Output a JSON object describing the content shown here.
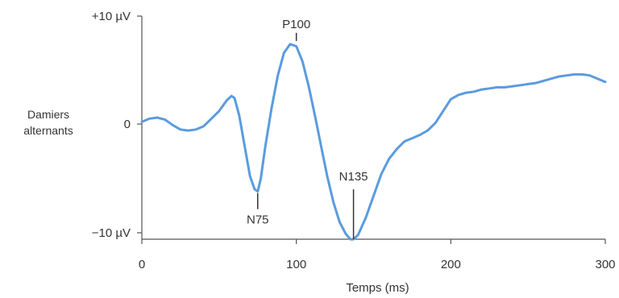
{
  "chart_data": {
    "type": "line",
    "xlabel": "Temps (ms)",
    "xlim": [
      0,
      300
    ],
    "ylim": [
      -10,
      10
    ],
    "x_ticks": [
      0,
      100,
      200,
      300
    ],
    "x_tick_labels": [
      "0",
      "100",
      "200",
      "300"
    ],
    "y_ticks": [
      10,
      0,
      -10
    ],
    "y_tick_labels": [
      "+10 µV",
      "0",
      "−10 µV"
    ],
    "row_label_lines": [
      "Damiers",
      "alternants"
    ],
    "series": [
      {
        "color": "#5b9bdf",
        "x": [
          0,
          5,
          10,
          15,
          20,
          25,
          30,
          35,
          40,
          45,
          50,
          55,
          58,
          60,
          63,
          66,
          70,
          73,
          75,
          77,
          80,
          84,
          88,
          92,
          96,
          100,
          104,
          108,
          112,
          116,
          120,
          124,
          128,
          132,
          135,
          137,
          140,
          145,
          150,
          155,
          160,
          165,
          170,
          175,
          180,
          185,
          190,
          195,
          200,
          205,
          210,
          215,
          220,
          225,
          230,
          235,
          240,
          245,
          250,
          255,
          260,
          265,
          270,
          275,
          280,
          285,
          290,
          295,
          300
        ],
        "y": [
          0.2,
          0.5,
          0.6,
          0.4,
          -0.1,
          -0.5,
          -0.6,
          -0.5,
          -0.2,
          0.5,
          1.2,
          2.2,
          2.6,
          2.4,
          0.8,
          -1.6,
          -4.8,
          -6.0,
          -6.2,
          -5.0,
          -2.0,
          1.5,
          4.5,
          6.6,
          7.4,
          7.2,
          5.8,
          3.5,
          0.8,
          -2.0,
          -4.8,
          -7.2,
          -9.0,
          -10.1,
          -10.6,
          -10.6,
          -10.2,
          -8.6,
          -6.6,
          -4.6,
          -3.2,
          -2.3,
          -1.6,
          -1.3,
          -1.0,
          -0.6,
          0.1,
          1.2,
          2.3,
          2.7,
          2.9,
          3.0,
          3.2,
          3.3,
          3.4,
          3.4,
          3.5,
          3.6,
          3.7,
          3.8,
          4.0,
          4.2,
          4.4,
          4.5,
          4.6,
          4.6,
          4.5,
          4.2,
          3.9
        ]
      }
    ],
    "annotations": [
      {
        "label": "P100",
        "x": 100,
        "y": 7.4,
        "position": "above"
      },
      {
        "label": "N75",
        "x": 75,
        "y": -6.2,
        "position": "below"
      },
      {
        "label": "N135",
        "x": 137,
        "y": -10.6,
        "position": "above-line"
      }
    ]
  }
}
